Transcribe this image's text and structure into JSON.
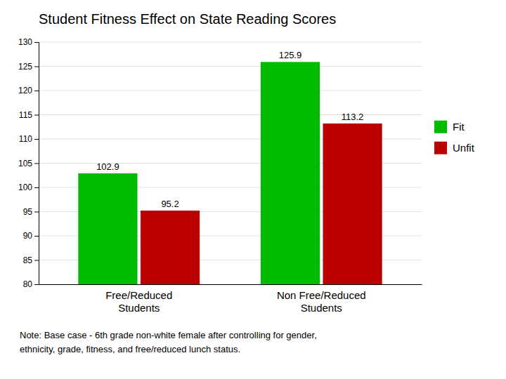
{
  "chart_data": {
    "type": "bar",
    "title": "Student Fitness Effect on State Reading Scores",
    "categories": [
      "Free/Reduced\nStudents",
      "Non Free/Reduced\nStudents"
    ],
    "series": [
      {
        "name": "Fit",
        "color": "#00BB00",
        "values": [
          102.9,
          125.9
        ]
      },
      {
        "name": "Unfit",
        "color": "#BB0000",
        "values": [
          95.2,
          113.2
        ]
      }
    ],
    "ylim": [
      80,
      130
    ],
    "yticks": [
      80,
      85,
      90,
      95,
      100,
      105,
      110,
      115,
      120,
      125,
      130
    ],
    "grid": true,
    "legend": "right",
    "data_labels": true,
    "annotations": [
      "Note: Base case - 6th grade non-white female after controlling for gender,",
      "ethnicity, grade, fitness, and free/reduced lunch status."
    ]
  }
}
